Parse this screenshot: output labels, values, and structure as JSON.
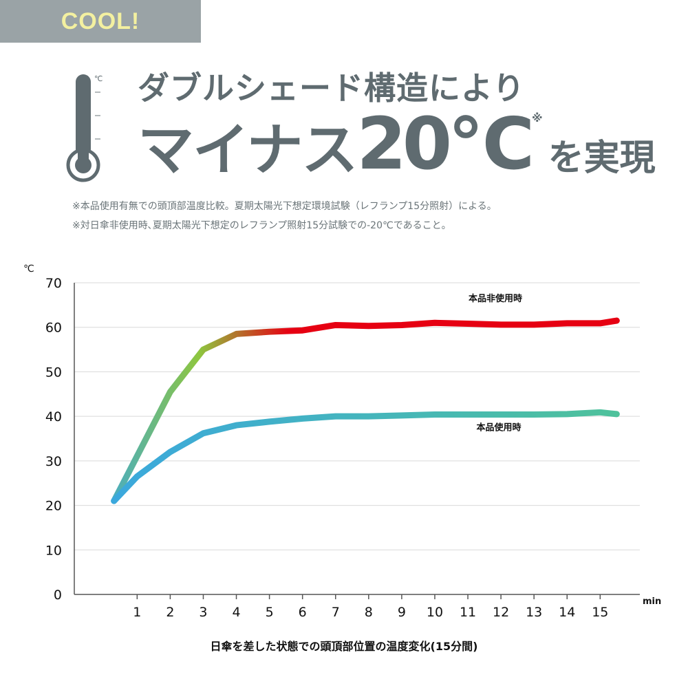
{
  "badge": {
    "label": "COOL!"
  },
  "thermometer": {
    "unit": "℃"
  },
  "headline": {
    "line1": "ダブルシェード構造により",
    "line2_main": "マイナス",
    "line2_number": "20℃",
    "line2_mark": "※",
    "line2_rest": "を実現"
  },
  "notes": [
    "※本品使用有無での頭頂部温度比較。夏期太陽光下想定環境試験（レフランプ15分照射）による。",
    "※対日傘非使用時､夏期太陽光下想定のレフランプ照射15分試験での-20℃であること。"
  ],
  "colors": {
    "text": "#5f6b70",
    "badge_bg": "#9aa3a6",
    "badge_text": "#f3f0a0",
    "series_without": [
      "#3aa7e0",
      "#8ec63f",
      "#e60012"
    ],
    "series_with": [
      "#3aa7e0",
      "#4fc29a"
    ]
  },
  "chart_data": {
    "type": "line",
    "yunit": "℃",
    "xunit": "min",
    "ylim": [
      0,
      70
    ],
    "yticks": [
      0,
      10,
      20,
      30,
      40,
      50,
      60,
      70
    ],
    "xticks": [
      1,
      2,
      3,
      4,
      5,
      6,
      7,
      8,
      9,
      10,
      11,
      12,
      13,
      14,
      15
    ],
    "xlim": [
      -0.9,
      16.2
    ],
    "grid": true,
    "caption": "日傘を差した状態での頭頂部位置の温度変化(15分間)",
    "series": [
      {
        "name": "本品非使用時",
        "x": [
          0.3,
          2,
          3,
          4,
          5,
          6,
          7,
          8,
          9,
          10,
          11,
          12,
          13,
          14,
          15,
          15.5
        ],
        "y": [
          21,
          45.5,
          55,
          58.5,
          59,
          59.3,
          60.5,
          60.3,
          60.5,
          61,
          60.8,
          60.6,
          60.6,
          60.9,
          60.9,
          61.5
        ]
      },
      {
        "name": "本品使用時",
        "x": [
          0.3,
          1,
          2,
          3,
          4,
          5,
          6,
          7,
          8,
          9,
          10,
          11,
          12,
          13,
          14,
          15,
          15.5
        ],
        "y": [
          21,
          26.5,
          32,
          36.2,
          38,
          38.8,
          39.5,
          40,
          40,
          40.2,
          40.4,
          40.4,
          40.4,
          40.4,
          40.5,
          40.9,
          40.5
        ]
      }
    ]
  }
}
